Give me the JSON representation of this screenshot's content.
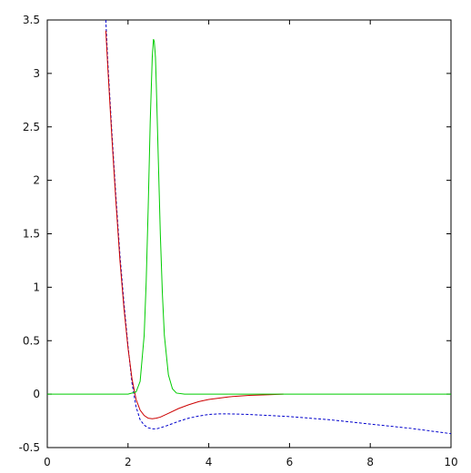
{
  "chart_data": {
    "type": "line",
    "title": "",
    "xlabel": "",
    "ylabel": "",
    "xlim": [
      0,
      10
    ],
    "ylim": [
      -0.5,
      3.5
    ],
    "xticks": [
      0,
      2,
      4,
      6,
      8,
      10
    ],
    "yticks": [
      3.5,
      3,
      2.5,
      2,
      1.5,
      1,
      0.5,
      0,
      -0.5
    ],
    "xtick_labels": [
      "0",
      "2",
      "4",
      "6",
      "8",
      "10"
    ],
    "ytick_labels": [
      "3.5",
      "3",
      "2.5",
      "2",
      "1.5",
      "1",
      "0.5",
      "0",
      "-0.5"
    ],
    "grid": false,
    "legend": "none",
    "series": [
      {
        "color": "#0000cc",
        "style": "dashed",
        "x": [
          1.45,
          1.5,
          1.6,
          1.7,
          1.8,
          1.9,
          2.0,
          2.1,
          2.2,
          2.3,
          2.4,
          2.5,
          2.6,
          2.7,
          2.8,
          3.0,
          3.25,
          3.5,
          3.75,
          4.0,
          4.25,
          4.5,
          4.75,
          5.0,
          5.5,
          6.0,
          6.5,
          7.0,
          7.5,
          8.0,
          8.5,
          9.0,
          9.5,
          10.0
        ],
        "y": [
          3.5,
          3.1,
          2.45,
          1.85,
          1.3,
          0.85,
          0.45,
          0.1,
          -0.12,
          -0.24,
          -0.29,
          -0.315,
          -0.325,
          -0.325,
          -0.315,
          -0.29,
          -0.255,
          -0.225,
          -0.205,
          -0.19,
          -0.185,
          -0.185,
          -0.187,
          -0.19,
          -0.2,
          -0.21,
          -0.225,
          -0.24,
          -0.26,
          -0.28,
          -0.3,
          -0.32,
          -0.345,
          -0.37
        ]
      },
      {
        "color": "#cc0000",
        "style": "solid",
        "x": [
          1.45,
          1.5,
          1.6,
          1.7,
          1.8,
          1.9,
          2.0,
          2.1,
          2.2,
          2.3,
          2.4,
          2.5,
          2.6,
          2.7,
          2.8,
          3.0,
          3.25,
          3.5,
          3.75,
          4.0,
          4.5,
          5.0,
          5.5,
          5.85
        ],
        "y": [
          3.4,
          3.05,
          2.4,
          1.8,
          1.25,
          0.8,
          0.43,
          0.14,
          -0.05,
          -0.15,
          -0.2,
          -0.225,
          -0.23,
          -0.225,
          -0.215,
          -0.18,
          -0.135,
          -0.1,
          -0.07,
          -0.05,
          -0.025,
          -0.012,
          -0.005,
          0.0
        ]
      },
      {
        "color": "#00cc00",
        "style": "solid",
        "x": [
          0.0,
          2.0,
          2.2,
          2.3,
          2.4,
          2.45,
          2.5,
          2.55,
          2.6,
          2.63,
          2.65,
          2.68,
          2.7,
          2.75,
          2.8,
          2.85,
          2.9,
          3.0,
          3.1,
          3.2,
          3.4,
          10.0
        ],
        "y": [
          0.0,
          0.0,
          0.02,
          0.12,
          0.55,
          1.05,
          1.75,
          2.55,
          3.15,
          3.32,
          3.3,
          3.15,
          2.9,
          2.2,
          1.5,
          0.95,
          0.55,
          0.18,
          0.05,
          0.01,
          0.0,
          0.0
        ]
      }
    ]
  }
}
